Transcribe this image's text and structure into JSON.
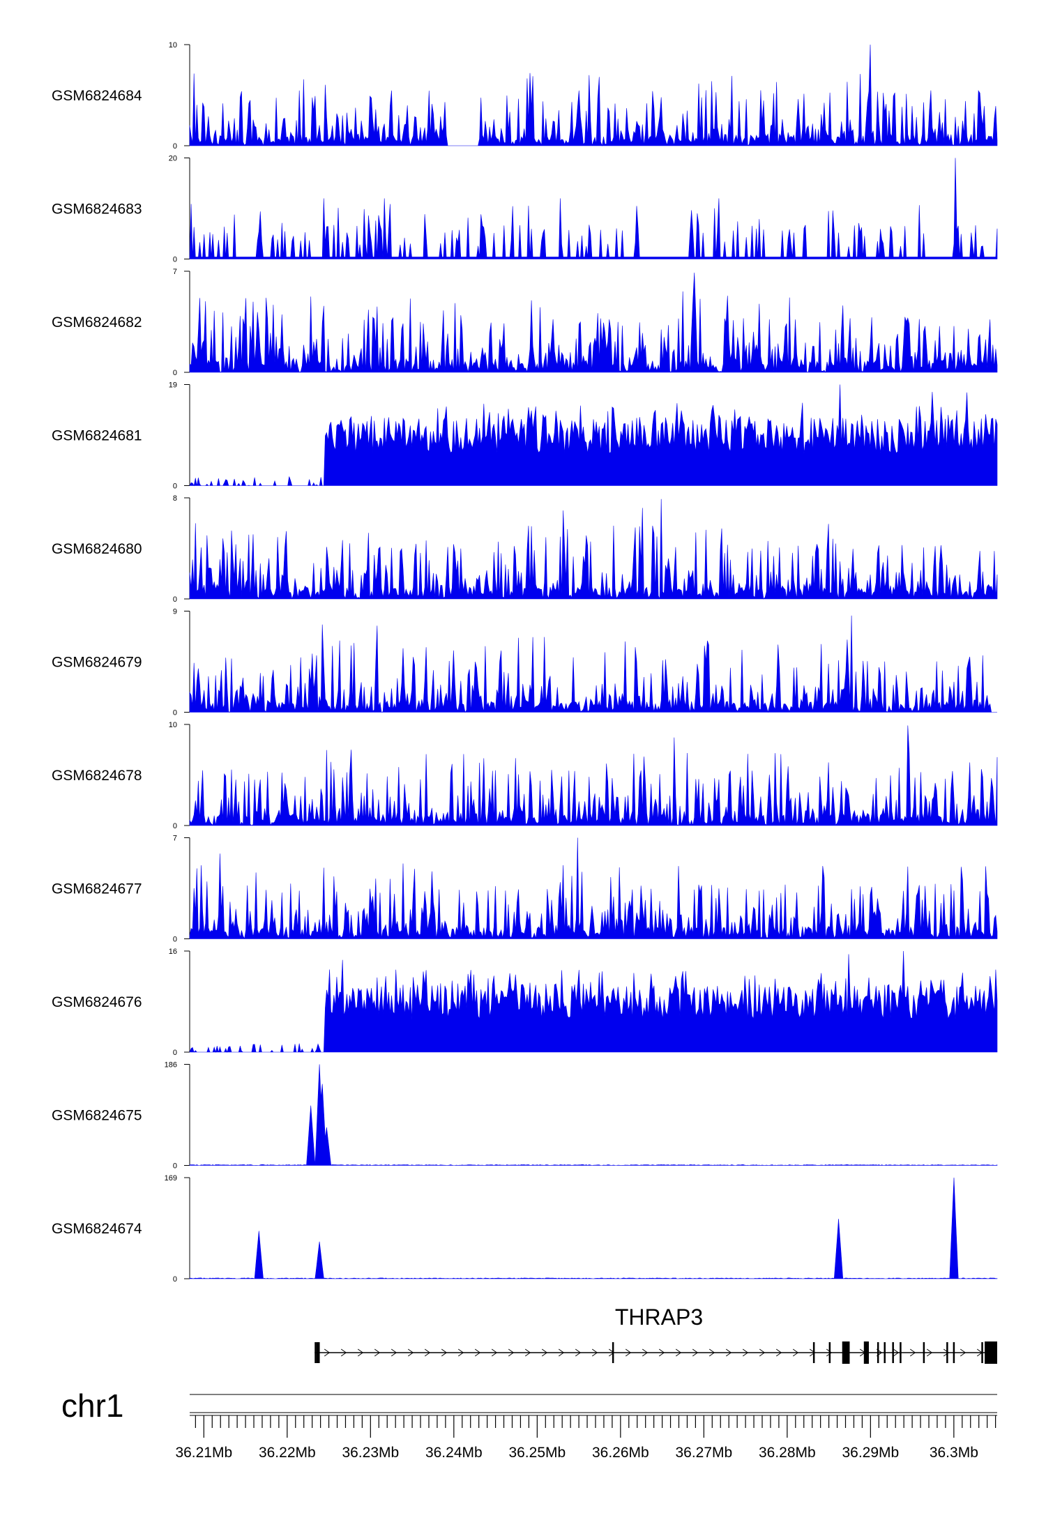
{
  "chart_data": {
    "type": "area",
    "chromosome": "chr1",
    "xlim": [
      36.2083,
      36.3052
    ],
    "x_unit": "Mb",
    "x_ticks": [
      36.21,
      36.22,
      36.23,
      36.24,
      36.25,
      36.26,
      36.27,
      36.28,
      36.29,
      36.3
    ],
    "x_tick_labels": [
      "36.21Mb",
      "36.22Mb",
      "36.23Mb",
      "36.24Mb",
      "36.25Mb",
      "36.26Mb",
      "36.27Mb",
      "36.28Mb",
      "36.29Mb",
      "36.3Mb"
    ],
    "tracks": [
      {
        "name": "GSM6824684",
        "ylim": [
          0,
          10
        ],
        "ymin_label": "0",
        "ymax_label": "10",
        "profile": "noise",
        "peaks": [
          [
            36.2899,
            10
          ],
          [
            36.2733,
            6.9
          ],
          [
            36.2574,
            6.8
          ]
        ]
      },
      {
        "name": "GSM6824683",
        "ylim": [
          0,
          20
        ],
        "ymin_label": "0",
        "ymax_label": "20",
        "profile": "sparse",
        "peaks": [
          [
            36.3002,
            20
          ],
          [
            36.2528,
            12
          ],
          [
            36.2317,
            12
          ],
          [
            36.2244,
            12
          ],
          [
            36.2718,
            12
          ]
        ]
      },
      {
        "name": "GSM6824682",
        "ylim": [
          0,
          7
        ],
        "ymin_label": "0",
        "ymax_label": "7",
        "profile": "noise",
        "peaks": [
          [
            36.2688,
            6.9
          ],
          [
            36.2675,
            5.6
          ],
          [
            36.2728,
            5.3
          ]
        ]
      },
      {
        "name": "GSM6824681",
        "ylim": [
          0,
          19
        ],
        "ymin_label": "0",
        "ymax_label": "19",
        "profile": "block",
        "peaks": [
          [
            36.2864,
            19
          ],
          [
            36.2974,
            17.6
          ],
          [
            36.3015,
            17.5
          ]
        ]
      },
      {
        "name": "GSM6824680",
        "ylim": [
          0,
          8
        ],
        "ymin_label": "0",
        "ymax_label": "8",
        "profile": "noise",
        "peaks": [
          [
            36.2649,
            7.9
          ],
          [
            36.2626,
            7.2
          ],
          [
            36.2531,
            7.0
          ]
        ]
      },
      {
        "name": "GSM6824679",
        "ylim": [
          0,
          9
        ],
        "ymin_label": "0",
        "ymax_label": "9",
        "profile": "noise",
        "peaks": [
          [
            36.2877,
            8.6
          ],
          [
            36.2243,
            7.8
          ],
          [
            36.2308,
            7.7
          ]
        ]
      },
      {
        "name": "GSM6824678",
        "ylim": [
          0,
          10
        ],
        "ymin_label": "0",
        "ymax_label": "10",
        "profile": "noise",
        "peaks": [
          [
            36.2944,
            9.9
          ],
          [
            36.2665,
            8.7
          ],
          [
            36.2276,
            7.5
          ]
        ]
      },
      {
        "name": "GSM6824677",
        "ylim": [
          0,
          7
        ],
        "ymin_label": "0",
        "ymax_label": "7",
        "profile": "noise",
        "peaks": [
          [
            36.2548,
            7.0
          ],
          [
            36.212,
            5.9
          ],
          [
            36.2532,
            5.1
          ]
        ]
      },
      {
        "name": "GSM6824676",
        "ylim": [
          0,
          16
        ],
        "ymin_label": "0",
        "ymax_label": "16",
        "profile": "block",
        "peaks": [
          [
            36.294,
            16
          ],
          [
            36.2874,
            15.5
          ],
          [
            36.2267,
            14.6
          ]
        ]
      },
      {
        "name": "GSM6824675",
        "ylim": [
          0,
          186
        ],
        "ymin_label": "0",
        "ymax_label": "186",
        "profile": "flat",
        "peaks": [
          [
            36.2238,
            186
          ],
          [
            36.2243,
            150
          ],
          [
            36.2228,
            110
          ],
          [
            36.2248,
            70
          ]
        ]
      },
      {
        "name": "GSM6824674",
        "ylim": [
          0,
          169
        ],
        "ymin_label": "0",
        "ymax_label": "169",
        "profile": "flat",
        "peaks": [
          [
            36.3,
            169
          ],
          [
            36.2862,
            100
          ],
          [
            36.2166,
            80
          ],
          [
            36.2239,
            62
          ]
        ]
      }
    ],
    "gene": {
      "name": "THRAP3",
      "strand": "+",
      "start": 36.2233,
      "end": 36.3052,
      "exons": [
        [
          36.2233,
          36.2234
        ],
        [
          36.2235,
          36.2236
        ],
        [
          36.2237,
          36.2238
        ],
        [
          36.259,
          36.2591
        ],
        [
          36.2831,
          36.2832
        ],
        [
          36.285,
          36.2851
        ],
        [
          36.2866,
          36.2875
        ],
        [
          36.2892,
          36.2898
        ],
        [
          36.2908,
          36.2909
        ],
        [
          36.2916,
          36.2917
        ],
        [
          36.2926,
          36.2927
        ],
        [
          36.2935,
          36.2936
        ],
        [
          36.2963,
          36.2964
        ],
        [
          36.2991,
          36.2992
        ],
        [
          36.2999,
          36.3
        ],
        [
          36.3033,
          36.3035
        ],
        [
          36.3037,
          36.3052
        ]
      ]
    }
  }
}
